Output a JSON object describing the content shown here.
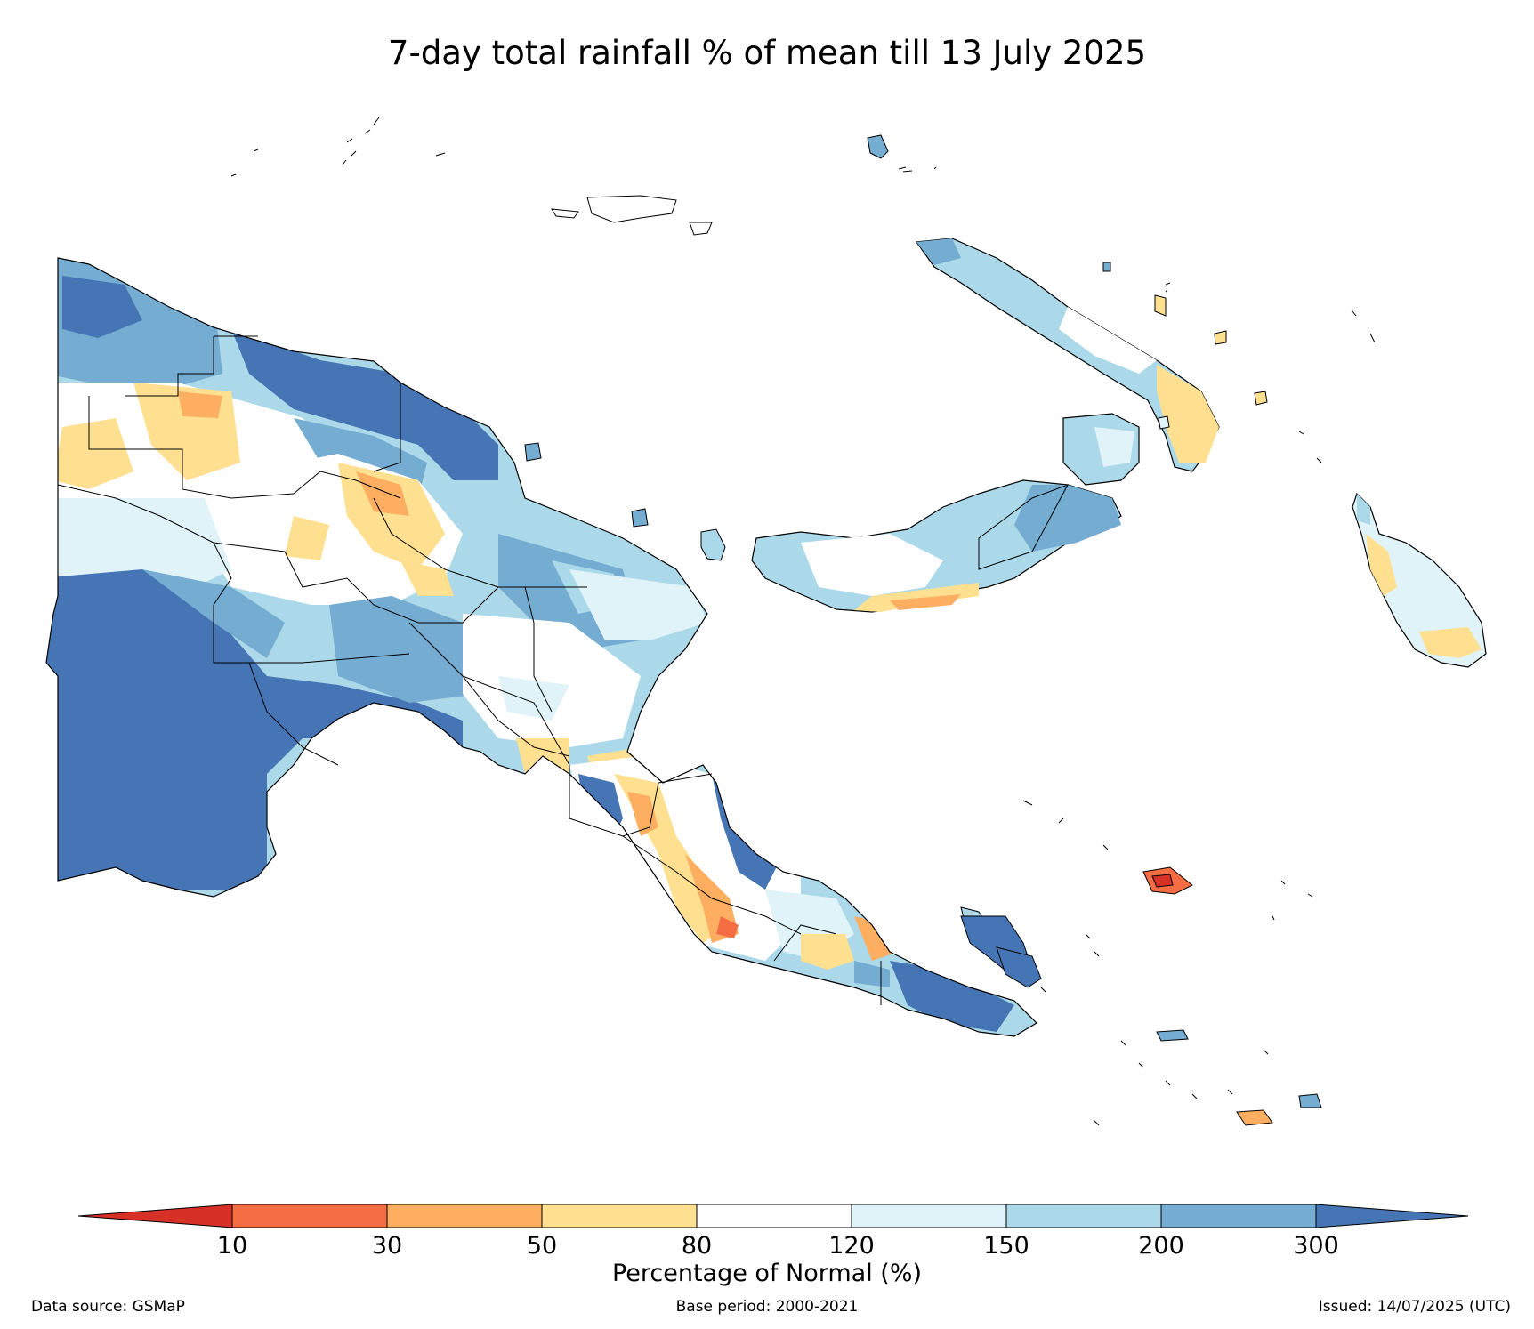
{
  "title": "7-day total rainfall % of mean till 13 July 2025",
  "legend": {
    "label": "Percentage of Normal (%)",
    "ticks": [
      "10",
      "30",
      "50",
      "80",
      "120",
      "150",
      "200",
      "300"
    ],
    "bins": [
      {
        "range": "<10",
        "color": "#d73027"
      },
      {
        "range": "10-30",
        "color": "#f46d43"
      },
      {
        "range": "30-50",
        "color": "#fdae61"
      },
      {
        "range": "50-80",
        "color": "#fee090"
      },
      {
        "range": "80-120",
        "color": "#ffffff"
      },
      {
        "range": "120-150",
        "color": "#e0f3f8"
      },
      {
        "range": "150-200",
        "color": "#abd9e9"
      },
      {
        "range": "200-300",
        "color": "#74add1"
      },
      {
        "range": ">300",
        "color": "#4575b4"
      }
    ]
  },
  "footer": {
    "source": "Data source: GSMaP",
    "base_period": "Base period: 2000-2021",
    "issued": "Issued: 14/07/2025 (UTC)"
  }
}
